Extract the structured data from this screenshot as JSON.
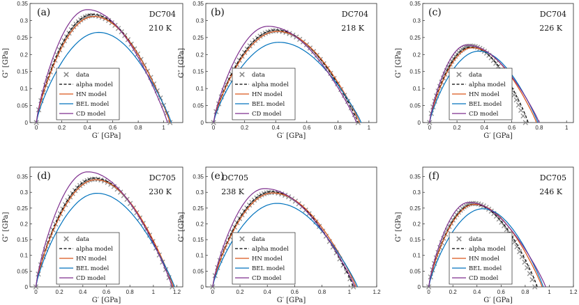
{
  "figure": {
    "legend_labels": {
      "data": "data",
      "alpha": "alpha model",
      "hn": "HN model",
      "bel": "BEL model",
      "cd": "CD model"
    }
  },
  "colors": {
    "data": "#888888",
    "alpha": "#000000",
    "hn": "#d95319",
    "bel": "#0072bd",
    "cd": "#7e2f8e"
  },
  "chart_data": [
    {
      "type": "line",
      "panel": "(a)",
      "sample": "DC704",
      "temperature": "210 K",
      "xlabel": "G′ [GPa]",
      "ylabel": "G″ [GPa]",
      "xlim": [
        -0.05,
        1.15
      ],
      "ylim": [
        0,
        0.35
      ],
      "xticks": [
        0,
        0.2,
        0.4,
        0.6,
        0.8,
        1
      ],
      "xtick_labels": [
        "0",
        "0.2",
        "0.4",
        "0.6",
        "0.8",
        "1"
      ],
      "yticks": [
        0,
        0.05,
        0.1,
        0.15,
        0.2,
        0.25,
        0.3,
        0.35
      ],
      "ytick_labels": [
        "0",
        "0.05",
        "0.1",
        "0.15",
        "0.2",
        "0.25",
        "0.3",
        "0.35"
      ],
      "legend": "bottom-left",
      "series": [
        {
          "name": "data",
          "style": "marker",
          "peak": [
            0.44,
            0.315
          ],
          "end": 1.05
        },
        {
          "name": "alpha model",
          "style": "dashed",
          "peak": [
            0.44,
            0.318
          ],
          "end": 1.05
        },
        {
          "name": "HN model",
          "style": "line",
          "peak": [
            0.45,
            0.312
          ],
          "end": 1.05
        },
        {
          "name": "BEL model",
          "style": "line",
          "peak": [
            0.49,
            0.265
          ],
          "end": 1.06
        },
        {
          "name": "CD model",
          "style": "line",
          "peak": [
            0.4,
            0.332
          ],
          "end": 1.03
        }
      ]
    },
    {
      "type": "line",
      "panel": "(b)",
      "sample": "DC704",
      "temperature": "218 K",
      "xlabel": "G′ [GPa]",
      "ylabel": "G″ [GPa]",
      "xlim": [
        -0.05,
        1.05
      ],
      "ylim": [
        0,
        0.35
      ],
      "xticks": [
        0,
        0.2,
        0.4,
        0.6,
        0.8,
        1
      ],
      "xtick_labels": [
        "0",
        "0.2",
        "0.4",
        "0.6",
        "0.8",
        "1"
      ],
      "yticks": [
        0,
        0.05,
        0.1,
        0.15,
        0.2,
        0.25,
        0.3,
        0.35
      ],
      "ytick_labels": [
        "0",
        "0.05",
        "0.1",
        "0.15",
        "0.2",
        "0.25",
        "0.3",
        "0.35"
      ],
      "legend": "bottom-left",
      "series": [
        {
          "name": "data",
          "style": "marker",
          "peak": [
            0.4,
            0.27
          ],
          "end": 0.93
        },
        {
          "name": "alpha model",
          "style": "dashed",
          "peak": [
            0.4,
            0.272
          ],
          "end": 0.93
        },
        {
          "name": "HN model",
          "style": "line",
          "peak": [
            0.41,
            0.268
          ],
          "end": 0.94
        },
        {
          "name": "BEL model",
          "style": "line",
          "peak": [
            0.42,
            0.236
          ],
          "end": 0.95
        },
        {
          "name": "CD model",
          "style": "line",
          "peak": [
            0.35,
            0.283
          ],
          "end": 0.92
        }
      ]
    },
    {
      "type": "line",
      "panel": "(c)",
      "sample": "DC704",
      "temperature": "226 K",
      "xlabel": "G′ [GPa]",
      "ylabel": "G″ [GPa]",
      "xlim": [
        -0.05,
        1.05
      ],
      "ylim": [
        0,
        0.35
      ],
      "xticks": [
        0,
        0.2,
        0.4,
        0.6,
        0.8,
        1
      ],
      "xtick_labels": [
        "0",
        "0.2",
        "0.4",
        "0.6",
        "0.8",
        "1"
      ],
      "yticks": [
        0,
        0.05,
        0.1,
        0.15,
        0.2,
        0.25,
        0.3,
        0.35
      ],
      "ytick_labels": [
        "0",
        "0.05",
        "0.1",
        "0.15",
        "0.2",
        "0.25",
        "0.3",
        "0.35"
      ],
      "legend": "bottom-left",
      "series": [
        {
          "name": "data",
          "style": "marker",
          "peak": [
            0.3,
            0.225
          ],
          "end": 0.7
        },
        {
          "name": "alpha model",
          "style": "dashed",
          "peak": [
            0.3,
            0.222
          ],
          "end": 0.72
        },
        {
          "name": "HN model",
          "style": "line",
          "peak": [
            0.31,
            0.22
          ],
          "end": 0.78
        },
        {
          "name": "BEL model",
          "style": "line",
          "peak": [
            0.36,
            0.21
          ],
          "end": 0.79
        },
        {
          "name": "CD model",
          "style": "line",
          "peak": [
            0.27,
            0.228
          ],
          "end": 0.8
        }
      ]
    },
    {
      "type": "line",
      "panel": "(d)",
      "sample": "DC705",
      "temperature": "230 K",
      "xlabel": "G′ [GPa]",
      "ylabel": "G″ [GPa]",
      "xlim": [
        -0.05,
        1.25
      ],
      "ylim": [
        0,
        0.38
      ],
      "xticks": [
        0,
        0.2,
        0.4,
        0.6,
        0.8,
        1,
        1.2
      ],
      "xtick_labels": [
        "0",
        "0.2",
        "0.4",
        "0.6",
        "0.8",
        "1",
        "1.2"
      ],
      "yticks": [
        0,
        0.05,
        0.1,
        0.15,
        0.2,
        0.25,
        0.3,
        0.35
      ],
      "ytick_labels": [
        "0",
        "0.05",
        "0.1",
        "0.15",
        "0.2",
        "0.25",
        "0.3",
        "0.35"
      ],
      "legend": "bottom-left",
      "series": [
        {
          "name": "data",
          "style": "marker",
          "peak": [
            0.5,
            0.342
          ],
          "end": 1.16
        },
        {
          "name": "alpha model",
          "style": "dashed",
          "peak": [
            0.5,
            0.345
          ],
          "end": 1.16
        },
        {
          "name": "HN model",
          "style": "line",
          "peak": [
            0.51,
            0.34
          ],
          "end": 1.17
        },
        {
          "name": "BEL model",
          "style": "line",
          "peak": [
            0.52,
            0.297
          ],
          "end": 1.18
        },
        {
          "name": "CD model",
          "style": "line",
          "peak": [
            0.44,
            0.365
          ],
          "end": 1.16
        }
      ]
    },
    {
      "type": "line",
      "panel": "(e)",
      "sample": "DC705",
      "temperature": "238 K",
      "xlabel": "G′ [GPa]",
      "ylabel": "G″ [GPa]",
      "xlim": [
        -0.05,
        1.2
      ],
      "ylim": [
        0,
        0.38
      ],
      "xticks": [
        0,
        0.2,
        0.4,
        0.6,
        0.8,
        1,
        1.2
      ],
      "xtick_labels": [
        "0",
        "0.2",
        "0.4",
        "0.6",
        "0.8",
        "1",
        "1.2"
      ],
      "yticks": [
        0,
        0.05,
        0.1,
        0.15,
        0.2,
        0.25,
        0.3,
        0.35
      ],
      "ytick_labels": [
        "0",
        "0.05",
        "0.1",
        "0.15",
        "0.2",
        "0.25",
        "0.3",
        "0.35"
      ],
      "legend": "bottom-left",
      "series": [
        {
          "name": "data",
          "style": "marker",
          "peak": [
            0.43,
            0.3
          ],
          "end": 1.03
        },
        {
          "name": "alpha model",
          "style": "dashed",
          "peak": [
            0.43,
            0.302
          ],
          "end": 1.03
        },
        {
          "name": "HN model",
          "style": "line",
          "peak": [
            0.44,
            0.298
          ],
          "end": 1.05
        },
        {
          "name": "BEL model",
          "style": "line",
          "peak": [
            0.47,
            0.265
          ],
          "end": 1.06
        },
        {
          "name": "CD model",
          "style": "line",
          "peak": [
            0.38,
            0.312
          ],
          "end": 1.04
        }
      ]
    },
    {
      "type": "line",
      "panel": "(f)",
      "sample": "DC705",
      "temperature": "246 K",
      "xlabel": "G′ [GPa]",
      "ylabel": "G″ [GPa]",
      "xlim": [
        -0.05,
        1.2
      ],
      "ylim": [
        0,
        0.38
      ],
      "xticks": [
        0,
        0.2,
        0.4,
        0.6,
        0.8,
        1,
        1.2
      ],
      "xtick_labels": [
        "0",
        "0.2",
        "0.4",
        "0.6",
        "0.8",
        "1",
        "1.2"
      ],
      "yticks": [
        0,
        0.05,
        0.1,
        0.15,
        0.2,
        0.25,
        0.3,
        0.35
      ],
      "ytick_labels": [
        "0",
        "0.05",
        "0.1",
        "0.15",
        "0.2",
        "0.25",
        "0.3",
        "0.35"
      ],
      "legend": "bottom-left",
      "series": [
        {
          "name": "data",
          "style": "marker",
          "peak": [
            0.37,
            0.265
          ],
          "end": 0.88
        },
        {
          "name": "alpha model",
          "style": "dashed",
          "peak": [
            0.37,
            0.262
          ],
          "end": 0.9
        },
        {
          "name": "HN model",
          "style": "line",
          "peak": [
            0.38,
            0.262
          ],
          "end": 0.94
        },
        {
          "name": "BEL model",
          "style": "line",
          "peak": [
            0.45,
            0.248
          ],
          "end": 0.95
        },
        {
          "name": "CD model",
          "style": "line",
          "peak": [
            0.33,
            0.268
          ],
          "end": 0.97
        }
      ]
    }
  ]
}
